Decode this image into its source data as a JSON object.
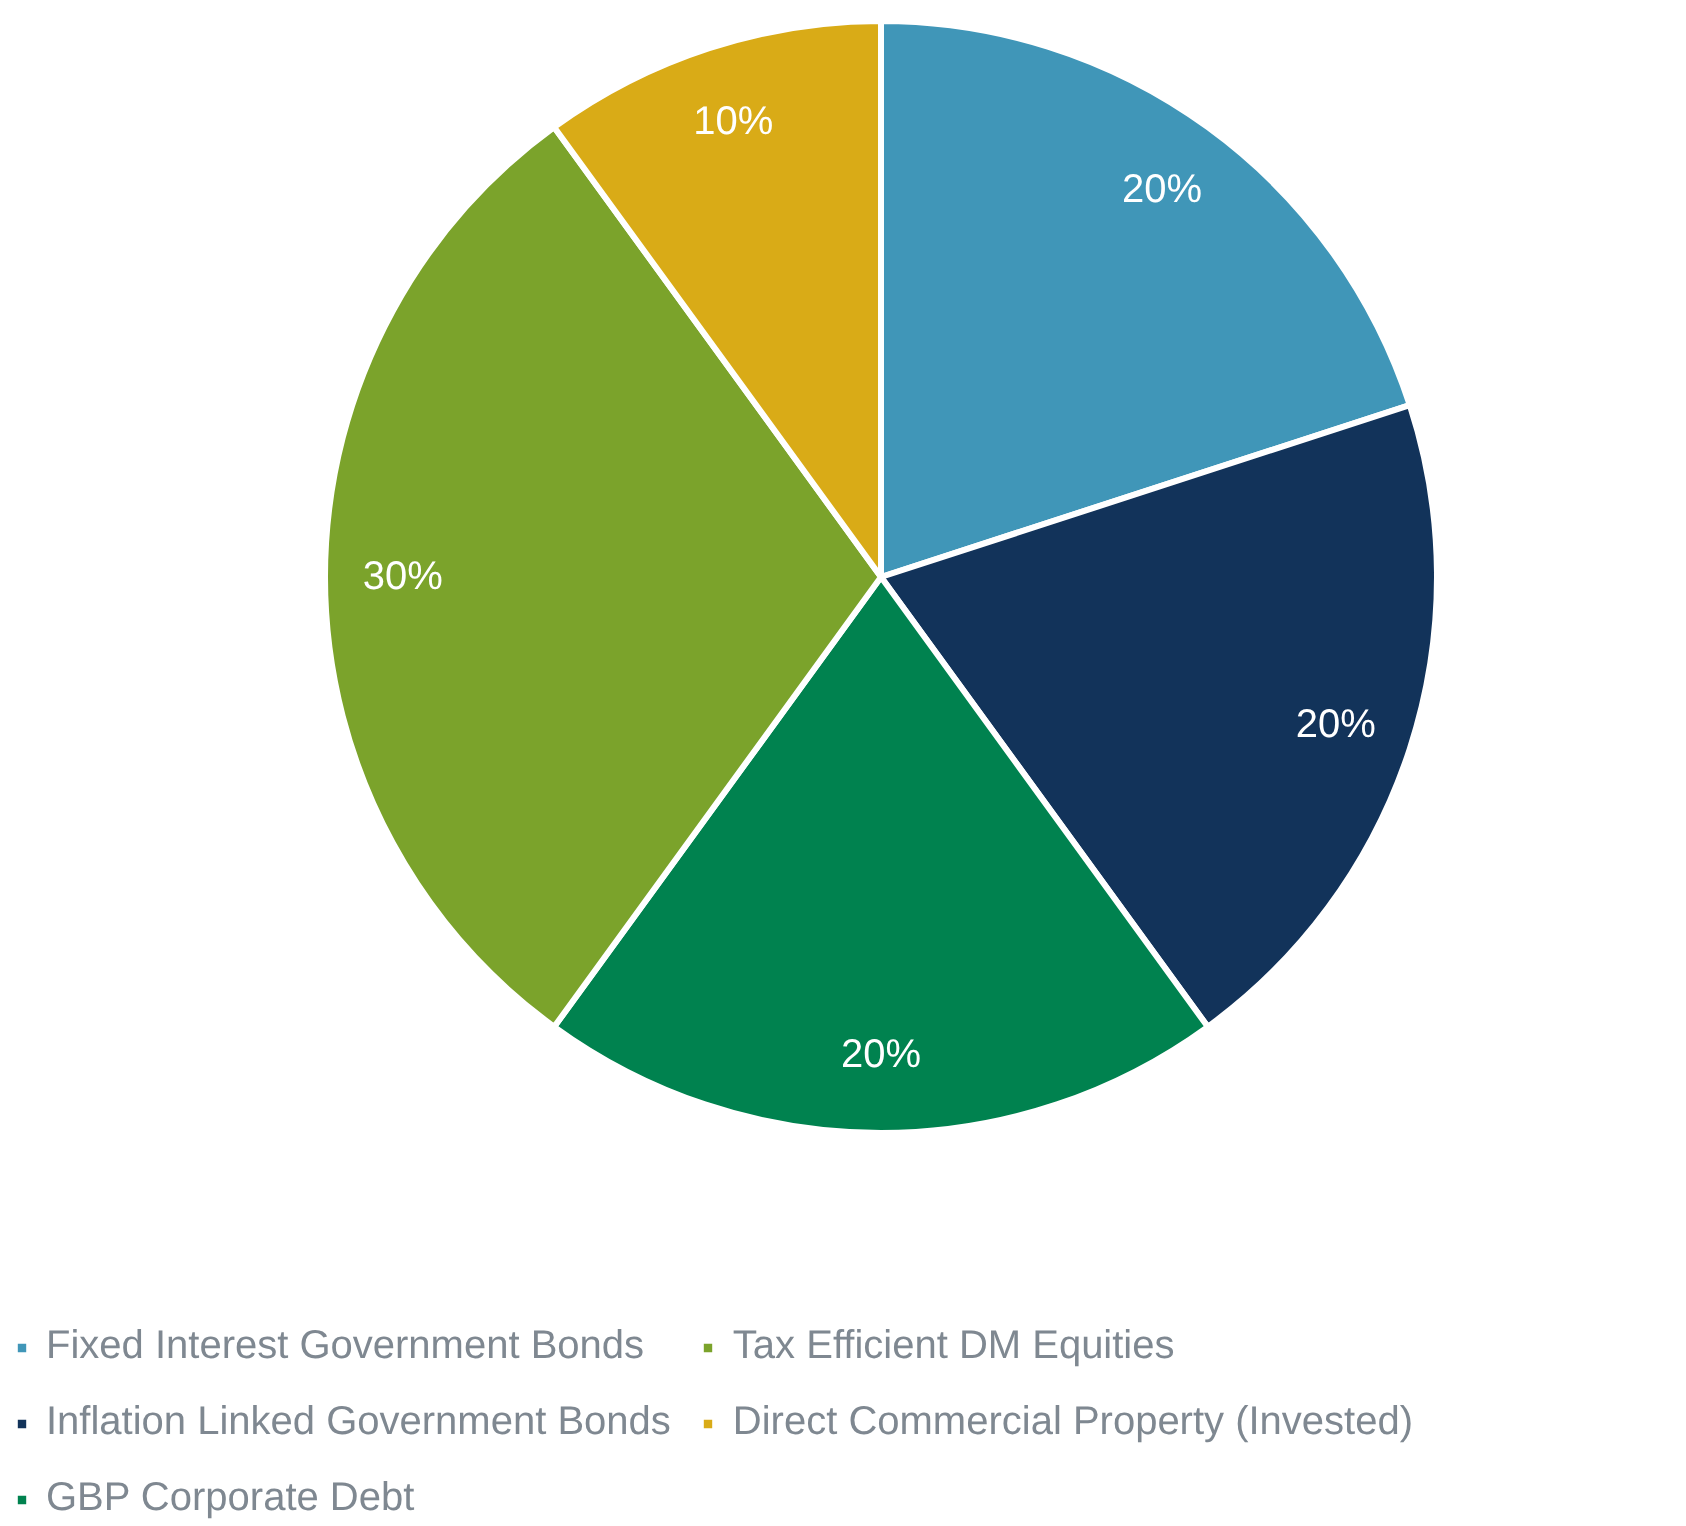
{
  "chart_data": {
    "type": "pie",
    "categories": [
      "Fixed Interest Government Bonds",
      "Inflation Linked Government Bonds",
      "GBP Corporate Debt",
      "Tax Efficient DM Equities",
      "Direct Commercial Property (Invested)"
    ],
    "values": [
      20,
      20,
      20,
      30,
      10
    ],
    "colors": [
      "#4096b8",
      "#12335a",
      "#00824f",
      "#7ba32b",
      "#d9ab17"
    ],
    "value_labels": [
      "20%",
      "20%",
      "20%",
      "30%",
      "10%"
    ],
    "legend": "bottom"
  }
}
